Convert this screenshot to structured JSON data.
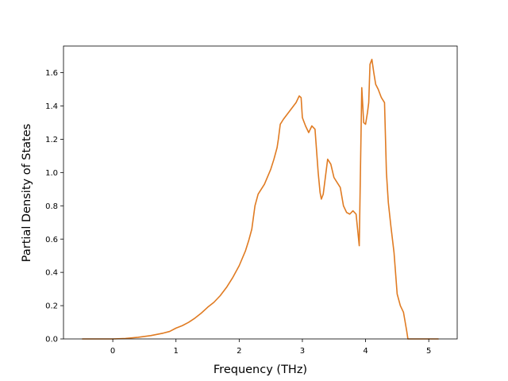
{
  "chart_data": {
    "type": "line",
    "title": "",
    "xlabel": "Frequency (THz)",
    "ylabel": "Partial Density of States",
    "xlim": [
      -0.78,
      5.45
    ],
    "ylim": [
      0.0,
      1.76
    ],
    "grid": false,
    "legend": "none",
    "x_ticks": [
      0,
      1,
      2,
      3,
      4,
      5
    ],
    "x_tick_labels": [
      "0",
      "1",
      "2",
      "3",
      "4",
      "5"
    ],
    "y_ticks": [
      0.0,
      0.2,
      0.4,
      0.6,
      0.8,
      1.0,
      1.2,
      1.4,
      1.6
    ],
    "y_tick_labels": [
      "0.0",
      "0.2",
      "0.4",
      "0.6",
      "0.8",
      "1.0",
      "1.2",
      "1.4",
      "1.6"
    ],
    "series": [
      {
        "color": "#e07b22",
        "x": [
          -0.48,
          0.0,
          0.2,
          0.4,
          0.6,
          0.8,
          0.9,
          1.0,
          1.1,
          1.2,
          1.3,
          1.4,
          1.5,
          1.6,
          1.7,
          1.8,
          1.9,
          2.0,
          2.1,
          2.15,
          2.2,
          2.25,
          2.3,
          2.4,
          2.5,
          2.55,
          2.6,
          2.62,
          2.65,
          2.7,
          2.8,
          2.9,
          2.95,
          2.98,
          3.0,
          3.05,
          3.1,
          3.15,
          3.2,
          3.25,
          3.28,
          3.3,
          3.33,
          3.36,
          3.4,
          3.45,
          3.5,
          3.55,
          3.6,
          3.65,
          3.7,
          3.75,
          3.8,
          3.85,
          3.9,
          3.94,
          3.97,
          4.0,
          4.03,
          4.05,
          4.07,
          4.1,
          4.13,
          4.16,
          4.2,
          4.25,
          4.3,
          4.33,
          4.36,
          4.4,
          4.45,
          4.5,
          4.55,
          4.6,
          4.65,
          4.67,
          4.69,
          4.75,
          5.0,
          5.15
        ],
        "y": [
          0.0,
          0.0,
          0.003,
          0.01,
          0.02,
          0.035,
          0.045,
          0.065,
          0.08,
          0.1,
          0.125,
          0.155,
          0.19,
          0.22,
          0.26,
          0.31,
          0.37,
          0.44,
          0.53,
          0.59,
          0.66,
          0.8,
          0.87,
          0.93,
          1.02,
          1.08,
          1.15,
          1.2,
          1.29,
          1.32,
          1.37,
          1.42,
          1.46,
          1.45,
          1.33,
          1.28,
          1.24,
          1.28,
          1.26,
          1.0,
          0.88,
          0.84,
          0.87,
          0.96,
          1.08,
          1.05,
          0.97,
          0.94,
          0.91,
          0.8,
          0.76,
          0.75,
          0.77,
          0.75,
          0.56,
          1.51,
          1.3,
          1.29,
          1.36,
          1.42,
          1.65,
          1.68,
          1.6,
          1.53,
          1.5,
          1.45,
          1.42,
          1.0,
          0.82,
          0.68,
          0.52,
          0.27,
          0.2,
          0.16,
          0.05,
          0.0,
          0.0,
          0.0,
          0.0,
          0.0
        ]
      }
    ]
  }
}
